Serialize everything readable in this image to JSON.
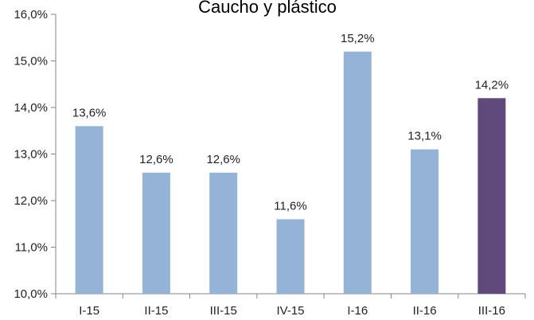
{
  "chart_data": {
    "type": "bar",
    "title": "Caucho y plástico",
    "xlabel": "",
    "ylabel": "",
    "categories": [
      "I-15",
      "II-15",
      "III-15",
      "IV-15",
      "I-16",
      "II-16",
      "III-16"
    ],
    "values": [
      13.6,
      12.6,
      12.6,
      11.6,
      15.2,
      13.1,
      14.2
    ],
    "data_labels": [
      "13,6%",
      "12,6%",
      "12,6%",
      "11,6%",
      "15,2%",
      "13,1%",
      "14,2%"
    ],
    "ylim": [
      10.0,
      16.0
    ],
    "yticks": [
      10.0,
      11.0,
      12.0,
      13.0,
      14.0,
      15.0,
      16.0
    ],
    "ytick_labels": [
      "10,0%",
      "11,0%",
      "12,0%",
      "13,0%",
      "14,0%",
      "15,0%",
      "16,0%"
    ],
    "grid": false,
    "legend": "none",
    "colors": {
      "default_bar": "#95b3d7",
      "highlight_bar": "#604a7b",
      "axis": "#868686"
    },
    "highlight_index": 6
  }
}
